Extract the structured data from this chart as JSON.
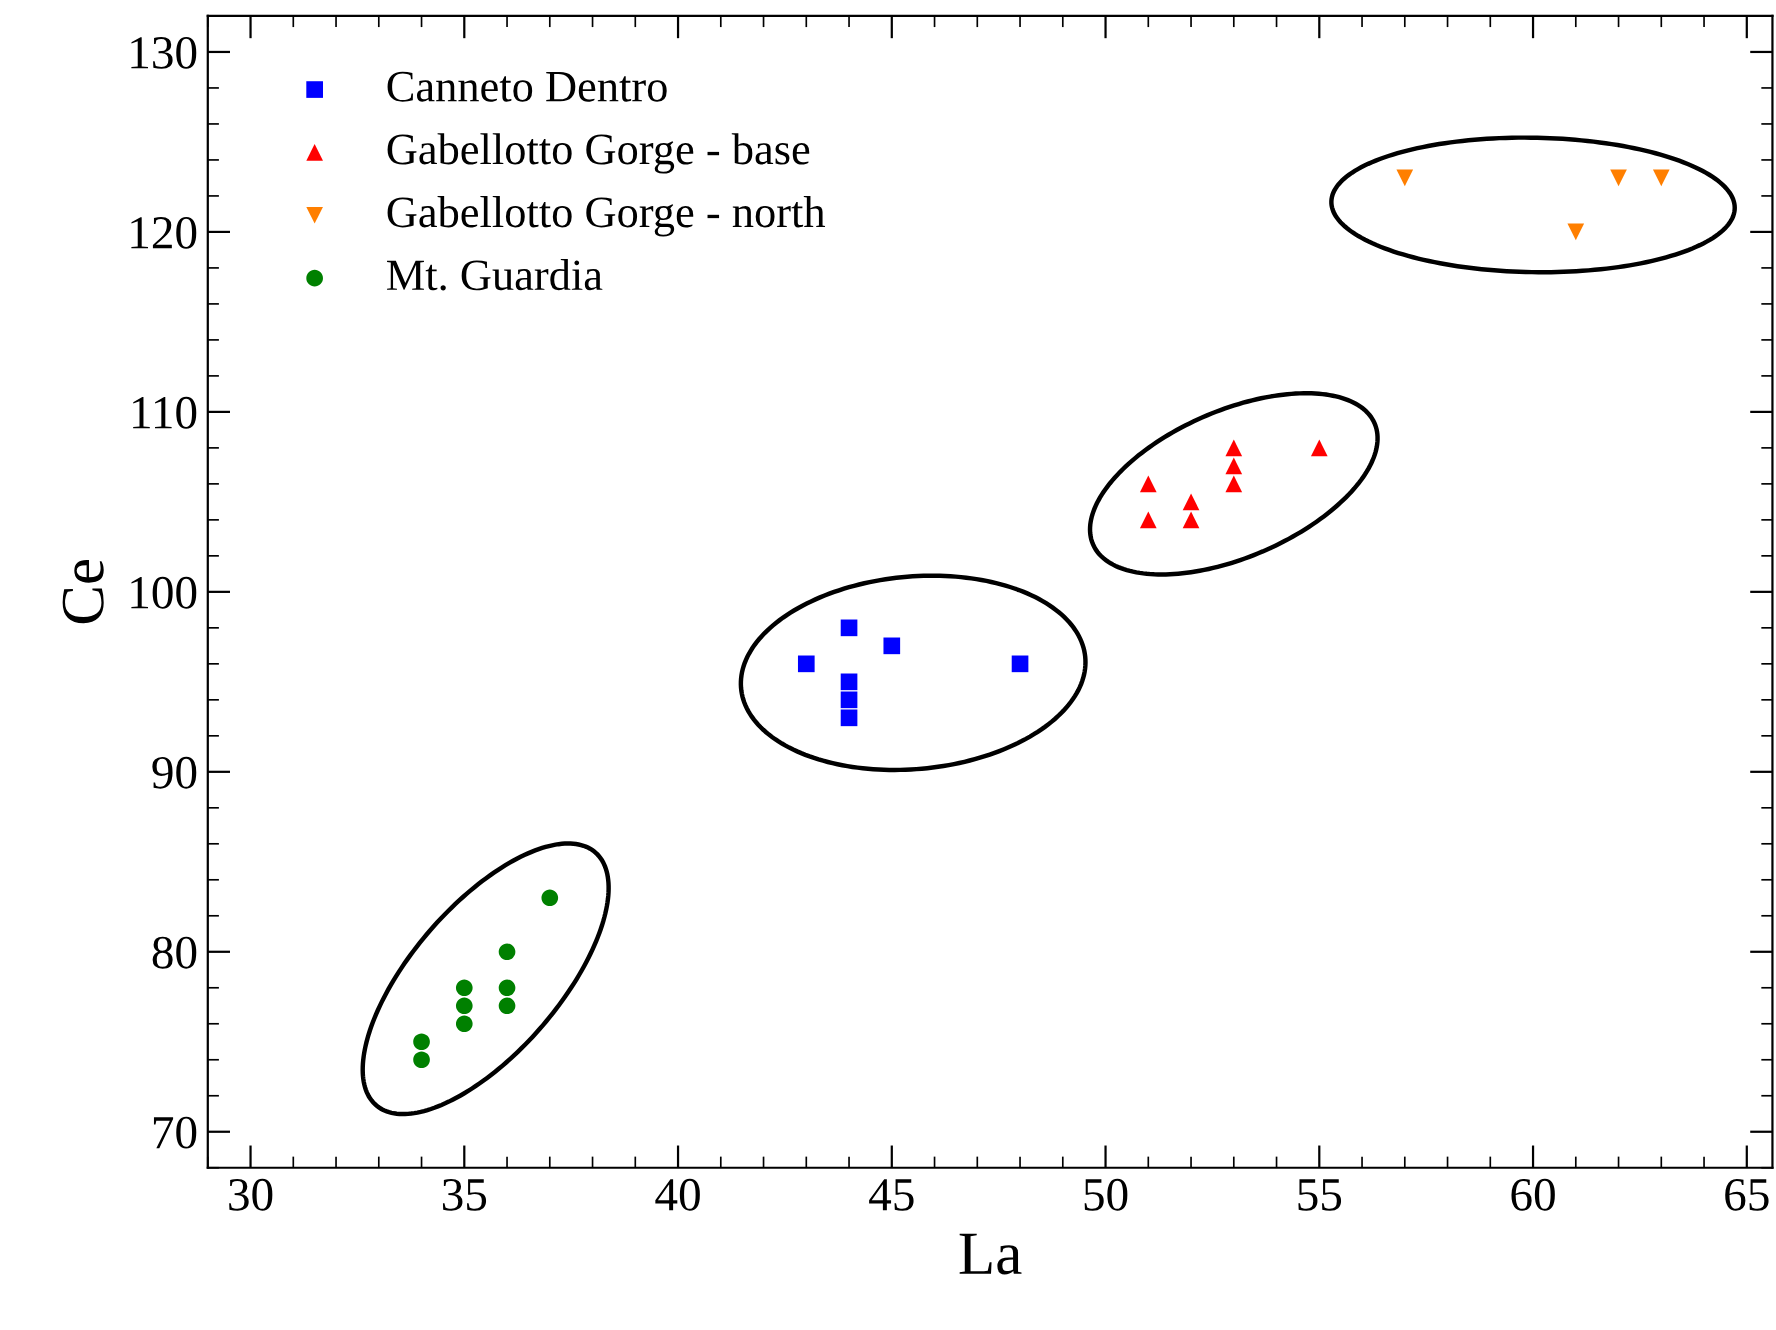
{
  "chart_data": {
    "type": "scatter",
    "xlabel": "La",
    "ylabel": "Ce",
    "xlim": [
      29,
      65.6
    ],
    "ylim": [
      68,
      132
    ],
    "xticks": [
      30,
      35,
      40,
      45,
      50,
      55,
      60,
      65
    ],
    "yticks": [
      70,
      80,
      90,
      100,
      110,
      120,
      130
    ],
    "grid": false,
    "legend": "top left",
    "series": [
      {
        "name": "Canneto Dentro",
        "color": "#0000ff",
        "marker": "square",
        "x": [
          43,
          44,
          44,
          44,
          44,
          45,
          48
        ],
        "values": [
          96,
          98,
          95,
          94,
          93,
          97,
          96
        ]
      },
      {
        "name": "Gabellotto Gorge - base",
        "color": "#ff0000",
        "marker": "triangle",
        "x": [
          51,
          51,
          52,
          52,
          53,
          53,
          53,
          55
        ],
        "values": [
          106,
          104,
          105,
          104,
          108,
          107,
          106,
          108
        ]
      },
      {
        "name": "Gabellotto Gorge - north",
        "color": "#ff7f00",
        "marker": "triangle_down",
        "x": [
          57,
          61,
          62,
          63
        ],
        "values": [
          123,
          120,
          123,
          123
        ]
      },
      {
        "name": "Mt. Guardia",
        "color": "#008000",
        "marker": "circle",
        "x": [
          34,
          34,
          35,
          35,
          35,
          36,
          36,
          36,
          37
        ],
        "values": [
          75,
          74,
          78,
          77,
          76,
          80,
          78,
          77,
          83
        ]
      }
    ]
  }
}
